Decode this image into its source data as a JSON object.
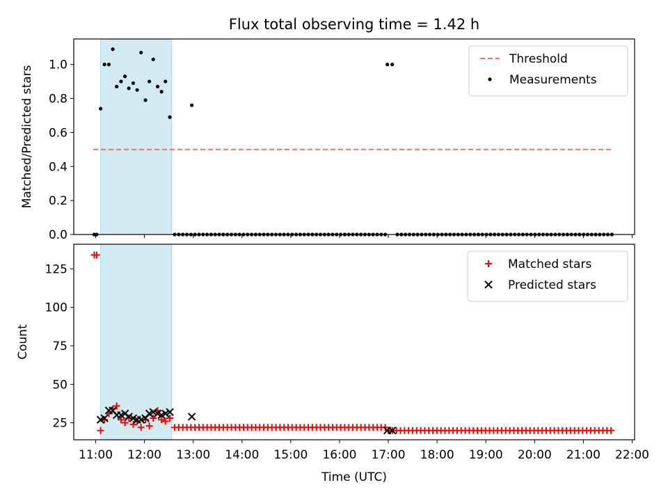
{
  "title": "Flux total observing time = 1.42 h",
  "chart_data": [
    {
      "type": "scatter",
      "ylabel": "Matched/Predicted stars",
      "xlabel": "",
      "xlim": [
        10.55,
        22.05
      ],
      "ylim": [
        0,
        1.15
      ],
      "yticks": [
        "0.0",
        "0.2",
        "0.4",
        "0.6",
        "0.8",
        "1.0"
      ],
      "ytick_values": [
        0,
        0.2,
        0.4,
        0.6,
        0.8,
        1.0
      ],
      "shaded_span": [
        11.1,
        12.56
      ],
      "shaded_color": "#add8e6",
      "legend_position": "upper right",
      "series": [
        {
          "name": "Threshold",
          "kind": "dashed-line",
          "color": "#ff6b6b",
          "x": [
            10.95,
            21.6
          ],
          "y": [
            0.5,
            0.5
          ]
        },
        {
          "name": "Measurements",
          "kind": "dot",
          "color": "#000000",
          "x": [
            10.97,
            11.02,
            11.1,
            11.18,
            11.27,
            11.35,
            11.43,
            11.52,
            11.6,
            11.68,
            11.77,
            11.85,
            11.93,
            12.02,
            12.1,
            12.18,
            12.27,
            12.35,
            12.43,
            12.52,
            12.97
          ],
          "y": [
            0.0,
            0.0,
            0.74,
            1.0,
            1.0,
            1.09,
            0.87,
            0.9,
            0.93,
            0.86,
            0.89,
            0.85,
            1.07,
            0.79,
            0.9,
            1.03,
            0.87,
            0.84,
            0.9,
            0.69,
            0.76
          ],
          "zeros_from": 12.62,
          "zeros_to": 21.6,
          "zeros_step": 0.083,
          "zeros_gap": [
            16.95,
            17.15
          ],
          "extra_x": [
            16.98,
            17.08
          ],
          "extra_y": [
            1.0,
            1.0
          ]
        }
      ]
    },
    {
      "type": "scatter",
      "ylabel": "Count",
      "xlabel": "Time (UTC)",
      "xlim": [
        10.55,
        22.05
      ],
      "ylim": [
        14,
        141
      ],
      "yticks": [
        "25",
        "50",
        "75",
        "100",
        "125"
      ],
      "ytick_values": [
        25,
        50,
        75,
        100,
        125
      ],
      "xticks": [
        "11:00",
        "12:00",
        "13:00",
        "14:00",
        "15:00",
        "16:00",
        "17:00",
        "18:00",
        "19:00",
        "20:00",
        "21:00",
        "22:00"
      ],
      "xtick_values": [
        11,
        12,
        13,
        14,
        15,
        16,
        17,
        18,
        19,
        20,
        21,
        22
      ],
      "shaded_span": [
        11.1,
        12.56
      ],
      "shaded_color": "#add8e6",
      "legend_position": "upper right",
      "series": [
        {
          "name": "Matched stars",
          "kind": "plus",
          "color": "#ff0000",
          "x": [
            10.97,
            11.02,
            11.1,
            11.18,
            11.27,
            11.35,
            11.43,
            11.52,
            11.6,
            11.68,
            11.77,
            11.85,
            11.93,
            12.02,
            12.1,
            12.18,
            12.27,
            12.35,
            12.43,
            12.52
          ],
          "y": [
            134,
            134,
            20,
            27,
            31,
            34,
            36,
            27,
            25,
            28,
            24,
            26,
            22,
            27,
            23,
            28,
            33,
            27,
            26,
            28
          ],
          "tail_a": {
            "from": 12.62,
            "to": 16.95,
            "step": 0.083,
            "y": 22
          },
          "tail_b": {
            "from": 17.0,
            "to": 21.6,
            "step": 0.083,
            "y": 20
          }
        },
        {
          "name": "Predicted stars",
          "kind": "cross",
          "color": "#000000",
          "x": [
            11.1,
            11.18,
            11.27,
            11.35,
            11.43,
            11.52,
            11.6,
            11.68,
            11.77,
            11.85,
            11.93,
            12.02,
            12.1,
            12.18,
            12.27,
            12.35,
            12.43,
            12.52,
            12.97,
            16.98,
            17.08
          ],
          "y": [
            27,
            28,
            33,
            33,
            30,
            30,
            31,
            29,
            28,
            27,
            27,
            28,
            31,
            32,
            31,
            30,
            31,
            32,
            29,
            20,
            20
          ]
        }
      ]
    }
  ]
}
